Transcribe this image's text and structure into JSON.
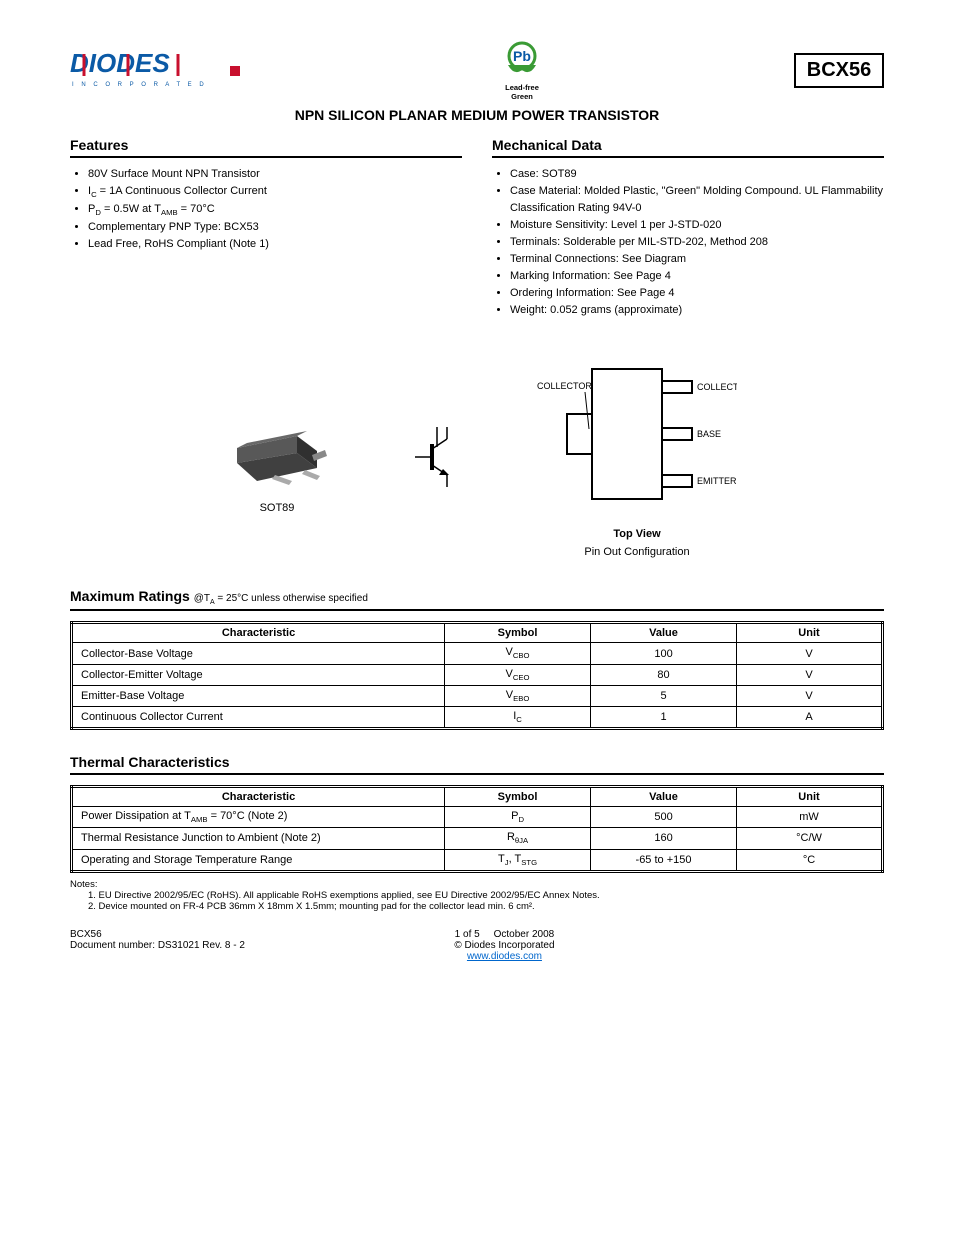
{
  "header": {
    "part_number": "BCX56",
    "title": "NPN SILICON PLANAR MEDIUM POWER TRANSISTOR",
    "lead_free_label": "Lead-free Green"
  },
  "features": {
    "title": "Features",
    "items": [
      "80V Surface Mount NPN Transistor",
      "I<sub>C</sub> = 1A Continuous Collector Current",
      "P<sub>D</sub> = 0.5W at T<sub>AMB</sub> = 70°C",
      "Complementary PNP Type: BCX53",
      "Lead Free, RoHS Compliant (Note 1)"
    ]
  },
  "mech": {
    "title": "Mechanical Data",
    "items": [
      "Case: SOT89",
      "Case Material: Molded Plastic, \"Green\" Molding Compound. UL Flammability Classification Rating 94V-0",
      "Moisture Sensitivity: Level 1 per J-STD-020",
      "Terminals: Solderable per MIL-STD-202, Method 208",
      "Terminal Connections: See Diagram",
      "Marking Information: See Page 4",
      "Ordering Information: See Page 4",
      "Weight: 0.052 grams (approximate)"
    ],
    "sub_start_index": 4
  },
  "diagrams": {
    "package_caption": "SOT89",
    "pin_labels": {
      "top": "COLLECTOR",
      "mid": "BASE",
      "bot": "EMITTER"
    },
    "view_labels": {
      "top": "Top View",
      "sub": "Pin Out Configuration"
    }
  },
  "max_ratings": {
    "title": "Maximum Ratings",
    "condition": "@T<sub>A</sub> = 25°C unless otherwise specified",
    "columns": [
      "Characteristic",
      "Symbol",
      "Value",
      "Unit"
    ],
    "rows": [
      [
        "Collector-Base Voltage",
        "V<sub>CBO</sub>",
        "100",
        "V"
      ],
      [
        "Collector-Emitter Voltage",
        "V<sub>CEO</sub>",
        "80",
        "V"
      ],
      [
        "Emitter-Base Voltage",
        "V<sub>EBO</sub>",
        "5",
        "V"
      ],
      [
        "Continuous Collector Current",
        "I<sub>C</sub>",
        "1",
        "A"
      ]
    ]
  },
  "thermal": {
    "title": "Thermal Characteristics",
    "columns": [
      "Characteristic",
      "Symbol",
      "Value",
      "Unit"
    ],
    "rows": [
      [
        "Power Dissipation at T<sub>AMB</sub> = 70°C (Note 2)",
        "P<sub>D</sub>",
        "500",
        "mW"
      ],
      [
        "Thermal Resistance Junction to Ambient (Note 2)",
        "R<sub>θJA</sub>",
        "160",
        "°C/W"
      ],
      [
        "Operating and Storage Temperature Range",
        "T<sub>J</sub>, T<sub>STG</sub>",
        "-65 to +150",
        "°C"
      ]
    ],
    "notes": [
      "Notes:",
      "1. EU Directive 2002/95/EC (RoHS). All applicable RoHS exemptions applied, see EU Directive 2002/95/EC Annex Notes.",
      "2. Device mounted on FR-4 PCB 36mm X 18mm X 1.5mm; mounting pad for the collector lead min. 6 cm²."
    ]
  },
  "footer": {
    "left1": "BCX56",
    "left2": "Document number: DS31021 Rev. 8 - 2",
    "center1": "© Diodes Incorporated",
    "center_link": "www.diodes.com",
    "right1": "1 of 5",
    "right2": "October 2008"
  },
  "colors": {
    "link": "#0066cc",
    "logo_blue": "#0b5aa6",
    "green": "#3a9b35",
    "chip_body": "#505050",
    "chip_lead": "#999999"
  }
}
